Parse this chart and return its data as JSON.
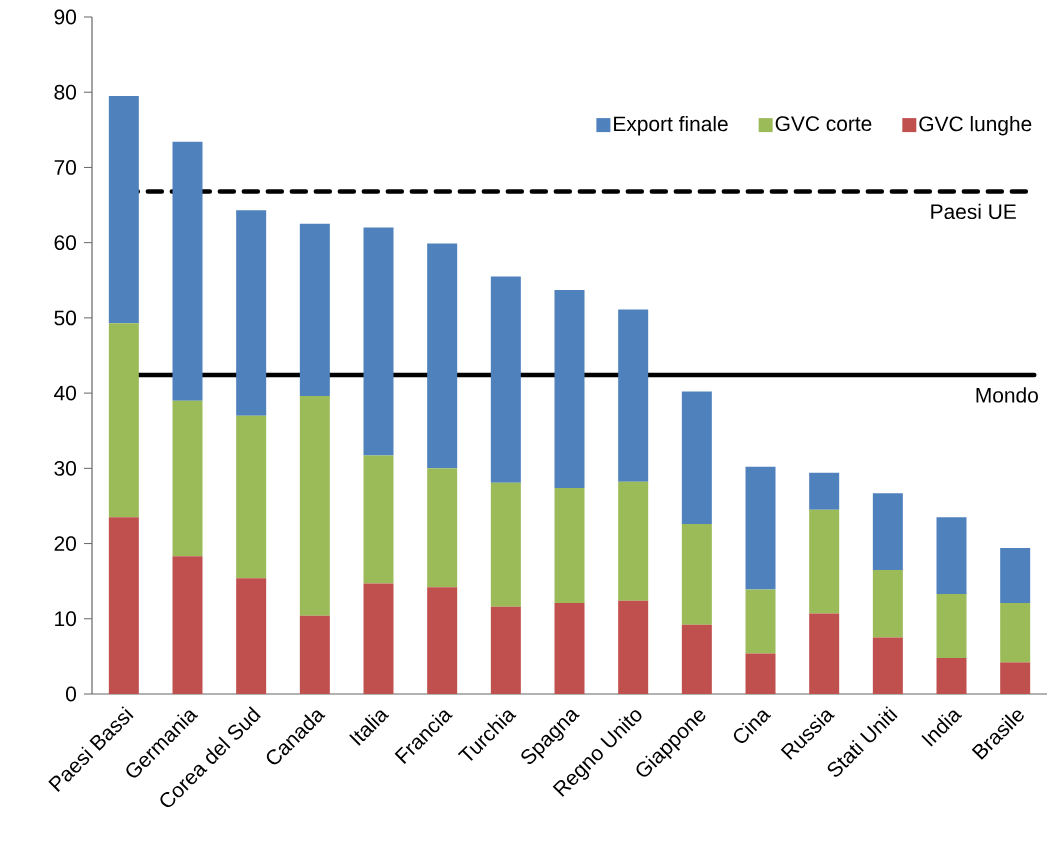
{
  "chart_data": {
    "type": "bar",
    "stacked": true,
    "categories": [
      "Paesi Bassi",
      "Germania",
      "Corea del Sud",
      "Canada",
      "Italia",
      "Francia",
      "Turchia",
      "Spagna",
      "Regno Unito",
      "Giappone",
      "Cina",
      "Russia",
      "Stati Uniti",
      "India",
      "Brasile"
    ],
    "series": [
      {
        "name": "GVC lunghe",
        "color": "#c0504d",
        "values": [
          23.5,
          18.3,
          15.4,
          10.4,
          14.7,
          14.2,
          11.6,
          12.1,
          12.4,
          9.2,
          5.4,
          10.7,
          7.5,
          4.8,
          4.2
        ]
      },
      {
        "name": "GVC corte",
        "color": "#9bbb59",
        "values": [
          25.8,
          20.7,
          21.6,
          29.2,
          17.0,
          15.8,
          16.5,
          15.3,
          15.8,
          13.4,
          8.5,
          13.8,
          9.0,
          8.5,
          7.9
        ]
      },
      {
        "name": "Export finale",
        "color": "#4f81bd",
        "values": [
          30.2,
          34.4,
          27.3,
          22.9,
          30.3,
          29.9,
          27.4,
          26.3,
          22.9,
          17.6,
          16.3,
          4.9,
          10.2,
          10.2,
          7.3
        ]
      }
    ],
    "ylim": [
      0,
      90
    ],
    "yticks": [
      0,
      10,
      20,
      30,
      40,
      50,
      60,
      70,
      80,
      90
    ],
    "ref_lines": [
      {
        "axis": "y",
        "value": 66.8,
        "label": "Paesi UE",
        "line_style": "dashed",
        "color": "#000000"
      },
      {
        "axis": "y",
        "value": 42.4,
        "label": "Mondo",
        "line_style": "solid",
        "color": "#000000"
      }
    ],
    "legend": "top right"
  }
}
